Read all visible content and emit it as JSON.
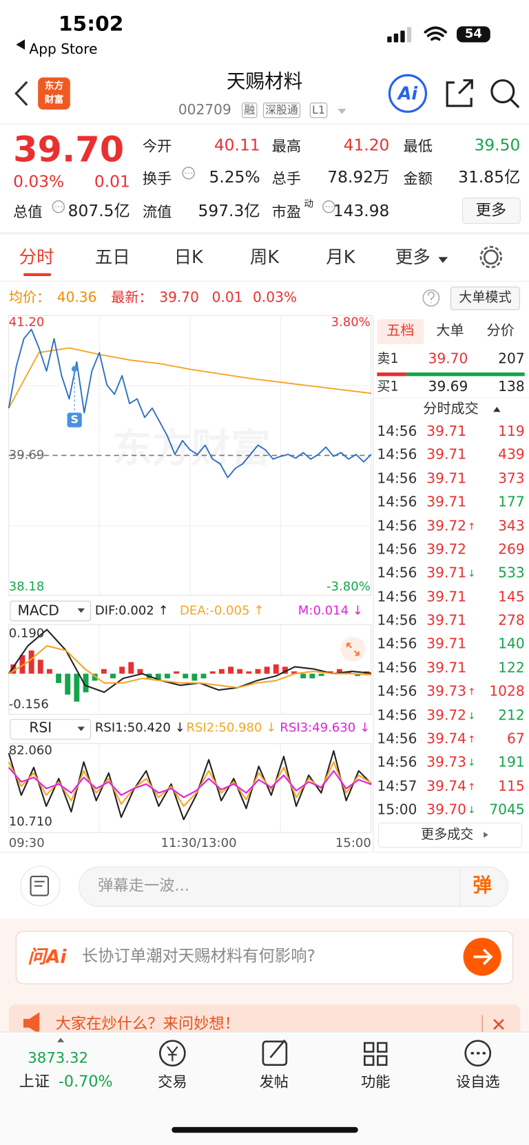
{
  "status_bar": {
    "time": "15:02",
    "back": "App Store",
    "battery": "54"
  },
  "header": {
    "logo": [
      "东方",
      "财富"
    ],
    "title": "天赐材料",
    "code": "002709",
    "tags": [
      "融",
      "深股通",
      "L1"
    ],
    "ai": "Ai"
  },
  "quote": {
    "price": "39.70",
    "change_pct": "0.03%",
    "change": "0.01",
    "more": "更多",
    "stats": [
      {
        "label": "今开",
        "value": "40.11",
        "color": "#e93030"
      },
      {
        "label": "最高",
        "value": "41.20",
        "color": "#e93030"
      },
      {
        "label": "最低",
        "value": "39.50",
        "color": "#13a54a"
      },
      {
        "label": "换手",
        "value": "5.25%",
        "color": "#222222"
      },
      {
        "label": "总手",
        "value": "78.92万",
        "color": "#222222"
      },
      {
        "label": "金额",
        "value": "31.85亿",
        "color": "#222222"
      },
      {
        "label": "总值",
        "value": "807.5亿",
        "color": "#222222"
      },
      {
        "label": "流值",
        "value": "597.3亿",
        "color": "#222222"
      },
      {
        "label": "市盈",
        "sup": "动",
        "value": "143.98",
        "color": "#222222"
      }
    ]
  },
  "tabs": {
    "items": [
      "分时",
      "五日",
      "日K",
      "周K",
      "月K",
      "更多"
    ],
    "active": 0
  },
  "info": {
    "avg_label": "均价：",
    "avg": "40.36",
    "last_label": "最新：",
    "last": "39.70",
    "change": "0.01",
    "change_pct": "0.03%",
    "mode": "大单模式"
  },
  "chart": {
    "watermark": "东方财富",
    "marker": "S",
    "ylim": [
      38.18,
      41.2
    ],
    "yticks": [
      {
        "value": 41.2,
        "label": "41.20"
      },
      38.18
    ],
    "y2lim": [
      -3.8,
      3.8
    ],
    "y2ticks": [
      {
        "value": 3.8,
        "label": "3.80%"
      },
      {
        "value": -3.8,
        "label": "-3.80%"
      }
    ],
    "ref": {
      "value": 39.69,
      "label": "39.69"
    },
    "xlabels": [
      "09:30",
      "11:30/13:00",
      "15:00"
    ],
    "price": {
      "color": "#2f6fc6",
      "values": [
        40.2,
        40.65,
        40.95,
        41.05,
        40.85,
        40.6,
        40.95,
        40.55,
        40.3,
        40.7,
        40.15,
        40.6,
        40.8,
        40.45,
        40.35,
        40.55,
        40.25,
        40.3,
        40.1,
        40.2,
        40.05,
        39.9,
        39.7,
        39.85,
        39.75,
        39.7,
        39.8,
        39.65,
        39.6,
        39.45,
        39.55,
        39.6,
        39.7,
        39.8,
        39.75,
        39.65,
        39.68,
        39.7,
        39.66,
        39.72,
        39.65,
        39.7,
        39.78,
        39.68,
        39.72,
        39.65,
        39.7,
        39.62,
        39.7
      ]
    },
    "avg": {
      "color": "#f5a623",
      "values": [
        40.2,
        40.8,
        40.85,
        40.78,
        40.72,
        40.68,
        40.62,
        40.57,
        40.52,
        40.48,
        40.44,
        40.4,
        40.36
      ]
    }
  },
  "macd": {
    "name": "MACD",
    "dif_label": "DIF:0.002 ↑",
    "dea_label": "DEA:-0.005 ↑",
    "m_label": "M:0.014 ↓",
    "ylim": [
      -0.156,
      0.19
    ],
    "yticks": [
      {
        "value": 0.19,
        "label": "0.190"
      },
      -0.156
    ],
    "up_color": "#e93030",
    "down_color": "#13a54a",
    "hist": [
      0.04,
      0.08,
      0.1,
      0.06,
      0.02,
      -0.04,
      -0.09,
      -0.12,
      -0.08,
      -0.03,
      0.02,
      -0.02,
      0.03,
      0.05,
      0.02,
      -0.02,
      -0.03,
      -0.02,
      0.01,
      -0.02,
      -0.03,
      -0.02,
      0.01,
      0.02,
      0.03,
      0.02,
      0.01,
      0.02,
      0.03,
      0.04,
      0.03,
      0.01,
      -0.02,
      -0.02,
      -0.01,
      0.01,
      0.02,
      0.01,
      -0.01,
      0.01
    ],
    "series": [
      {
        "color": "#222222",
        "values": [
          0,
          0.12,
          0.19,
          0.1,
          -0.05,
          -0.08,
          -0.02,
          0,
          -0.03,
          -0.05,
          -0.04,
          -0.07,
          -0.06,
          -0.03,
          -0.01,
          0.03,
          0.02,
          0,
          0.01,
          0.002
        ]
      },
      {
        "color": "#f5a623",
        "values": [
          0,
          0.05,
          0.12,
          0.1,
          0.02,
          -0.04,
          -0.04,
          -0.02,
          -0.03,
          -0.04,
          -0.04,
          -0.05,
          -0.06,
          -0.04,
          -0.03,
          0,
          0.01,
          0,
          0,
          -0.005
        ]
      }
    ]
  },
  "rsi": {
    "name": "RSI",
    "rsi1_label": "RSI1:50.420 ↓",
    "rsi2_label": "RSI2:50.980 ↓",
    "rsi3_label": "RSI3:49.630 ↓",
    "ylim": [
      10.71,
      82.06
    ],
    "yticks": [
      {
        "value": 82.06,
        "label": "82.060"
      },
      {
        "value": 10.71,
        "label": "10.710"
      }
    ],
    "series": [
      {
        "color": "#222222",
        "values": [
          78,
          40,
          65,
          30,
          55,
          25,
          70,
          35,
          60,
          20,
          45,
          62,
          30,
          50,
          18,
          40,
          72,
          35,
          55,
          28,
          66,
          40,
          75,
          30,
          58,
          42,
          80,
          35,
          62,
          50.42
        ]
      },
      {
        "color": "#f5a623",
        "values": [
          70,
          48,
          60,
          40,
          52,
          35,
          62,
          42,
          55,
          32,
          46,
          55,
          38,
          48,
          30,
          42,
          62,
          42,
          52,
          36,
          60,
          45,
          65,
          38,
          55,
          46,
          70,
          42,
          58,
          50.98
        ]
      },
      {
        "color": "#e020e0",
        "values": [
          65,
          52,
          56,
          46,
          50,
          42,
          56,
          46,
          52,
          40,
          46,
          50,
          42,
          46,
          38,
          44,
          55,
          45,
          50,
          42,
          54,
          47,
          58,
          44,
          52,
          47,
          62,
          46,
          54,
          49.63
        ]
      }
    ]
  },
  "book": {
    "tabs": [
      "五档",
      "大单",
      "分价"
    ],
    "sell": {
      "label": "卖1",
      "price": "39.70",
      "volume": "207"
    },
    "buy": {
      "label": "买1",
      "price": "39.69",
      "volume": "138"
    },
    "trades_title": "分时成交",
    "more": "更多成交",
    "up_color": "#e93030",
    "down_color": "#13a54a",
    "trades": [
      {
        "time": "14:56",
        "price": "39.71",
        "volume": "119",
        "side": "up"
      },
      {
        "time": "14:56",
        "price": "39.71",
        "volume": "439",
        "side": "up"
      },
      {
        "time": "14:56",
        "price": "39.71",
        "volume": "373",
        "side": "up"
      },
      {
        "time": "14:56",
        "price": "39.71",
        "volume": "177",
        "side": "down"
      },
      {
        "time": "14:56",
        "price": "39.72",
        "flag": "↑",
        "volume": "343",
        "side": "up"
      },
      {
        "time": "14:56",
        "price": "39.72",
        "volume": "269",
        "side": "up"
      },
      {
        "time": "14:56",
        "price": "39.71",
        "flag": "↓",
        "volume": "533",
        "side": "down"
      },
      {
        "time": "14:56",
        "price": "39.71",
        "volume": "145",
        "side": "up"
      },
      {
        "time": "14:56",
        "price": "39.71",
        "volume": "278",
        "side": "up"
      },
      {
        "time": "14:56",
        "price": "39.71",
        "volume": "140",
        "side": "down"
      },
      {
        "time": "14:56",
        "price": "39.71",
        "volume": "122",
        "side": "down"
      },
      {
        "time": "14:56",
        "price": "39.73",
        "flag": "↑",
        "volume": "1028",
        "side": "up"
      },
      {
        "time": "14:56",
        "price": "39.72",
        "flag": "↓",
        "volume": "212",
        "side": "down"
      },
      {
        "time": "14:56",
        "price": "39.74",
        "flag": "↑",
        "volume": "67",
        "side": "up"
      },
      {
        "time": "14:56",
        "price": "39.73",
        "flag": "↓",
        "volume": "191",
        "side": "down"
      },
      {
        "time": "14:57",
        "price": "39.74",
        "flag": "↑",
        "volume": "115",
        "side": "up"
      },
      {
        "time": "15:00",
        "price": "39.70",
        "flag": "↓",
        "volume": "7045",
        "side": "down"
      }
    ]
  },
  "danmaku": {
    "placeholder": "弹幕走一波...",
    "button": "弹"
  },
  "ask": {
    "brand": "问Ai",
    "question": "长协订单潮对天赐材料有何影响?"
  },
  "banner": {
    "text": "大家在炒什么？来问妙想！"
  },
  "tabbar": {
    "index_value": "3873.32",
    "index_name": "上证",
    "index_change": "-0.70%",
    "items": [
      "交易",
      "发帖",
      "功能",
      "设自选"
    ]
  }
}
